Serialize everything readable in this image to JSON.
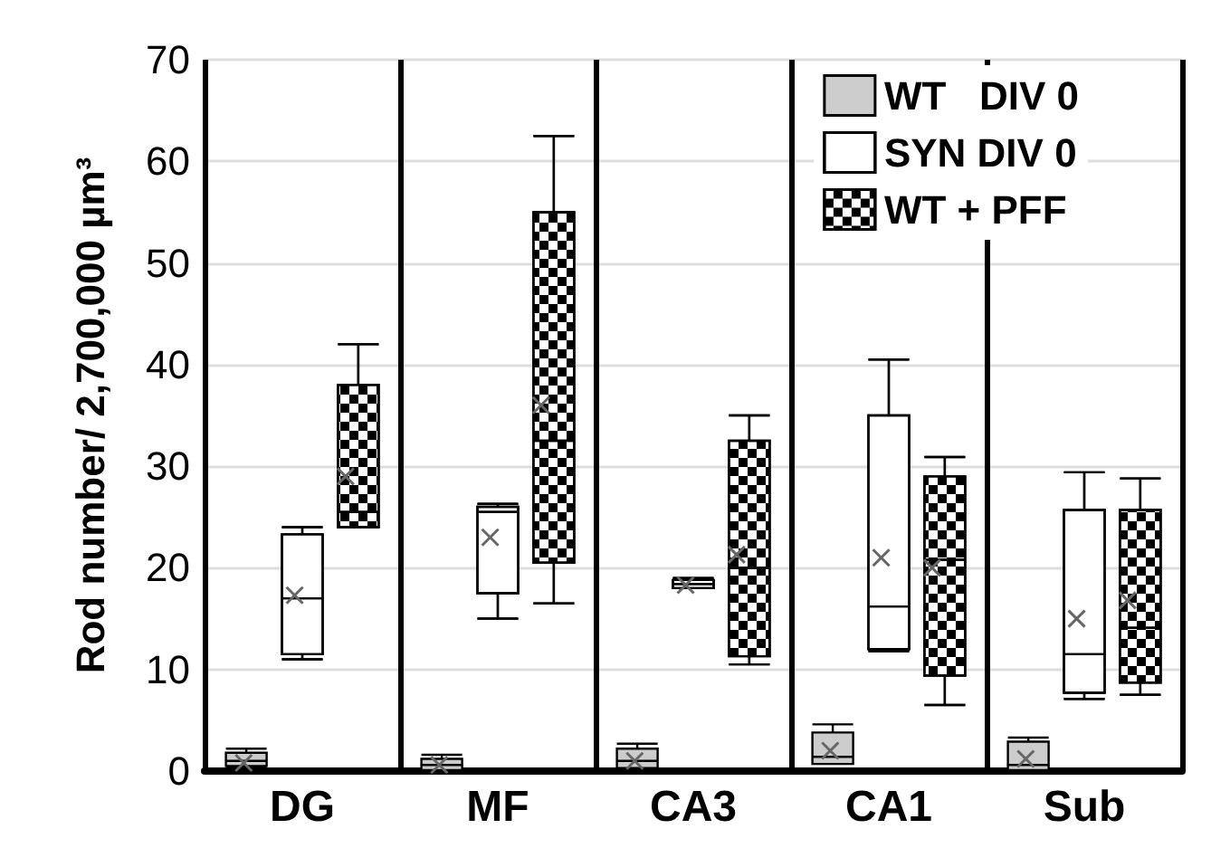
{
  "chart_data": {
    "type": "box",
    "ylabel": "Rod number/ 2,700,000 µm³",
    "categories": [
      "DG",
      "MF",
      "CA3",
      "CA1",
      "Sub"
    ],
    "ylim": [
      0,
      70
    ],
    "yticks": [
      0,
      10,
      20,
      30,
      40,
      50,
      60,
      70
    ],
    "grid": true,
    "legend": "top right",
    "series": [
      {
        "name": "WT   DIV 0",
        "color": "#cccccc",
        "boxes": [
          {
            "low": 0.3,
            "q1": 0.5,
            "median": 1,
            "q3": 1.8,
            "high": 2.2,
            "mean": 0.8
          },
          {
            "low": 0,
            "q1": 0.1,
            "median": 0.6,
            "q3": 1.2,
            "high": 1.6,
            "mean": 0.6
          },
          {
            "low": 0.3,
            "q1": 0.3,
            "median": 1,
            "q3": 2.2,
            "high": 2.7,
            "mean": 1
          },
          {
            "low": 0.7,
            "q1": 0.7,
            "median": 1.4,
            "q3": 3.8,
            "high": 4.6,
            "mean": 2
          },
          {
            "low": 0.1,
            "q1": 0.1,
            "median": 0.6,
            "q3": 2.9,
            "high": 3.3,
            "mean": 1.2
          }
        ]
      },
      {
        "name": "SYN DIV 0",
        "color": "#ffffff",
        "boxes": [
          {
            "low": 11,
            "q1": 11.5,
            "median": 17,
            "q3": 23.3,
            "high": 24,
            "mean": 17.3
          },
          {
            "low": 15,
            "q1": 17.5,
            "median": 25.5,
            "q3": 26,
            "high": 26.3,
            "mean": 23
          },
          {
            "low": 18,
            "q1": 18,
            "median": 18.4,
            "q3": 18.8,
            "high": 19,
            "mean": 18.3
          },
          {
            "low": 11.8,
            "q1": 12,
            "median": 16.2,
            "q3": 35,
            "high": 40.5,
            "mean": 21
          },
          {
            "low": 7.1,
            "q1": 7.7,
            "median": 11.5,
            "q3": 25.7,
            "high": 29.4,
            "mean": 15
          }
        ]
      },
      {
        "name": "WT + PFF",
        "color": "#000000",
        "boxes": [
          {
            "low": 24,
            "q1": 24,
            "median": 25.5,
            "q3": 38,
            "high": 42,
            "mean": 29
          },
          {
            "low": 16.5,
            "q1": 20.5,
            "median": 32.5,
            "q3": 55,
            "high": 62.5,
            "mean": 36
          },
          {
            "low": 10.5,
            "q1": 11.3,
            "median": 20,
            "q3": 32.5,
            "high": 35,
            "mean": 21.3
          },
          {
            "low": 6.5,
            "q1": 9.4,
            "median": 20.8,
            "q3": 29,
            "high": 30.9,
            "mean": 20
          },
          {
            "low": 7.5,
            "q1": 8.7,
            "median": 14.1,
            "q3": 25.7,
            "high": 28.8,
            "mean": 16.8
          }
        ]
      }
    ]
  }
}
